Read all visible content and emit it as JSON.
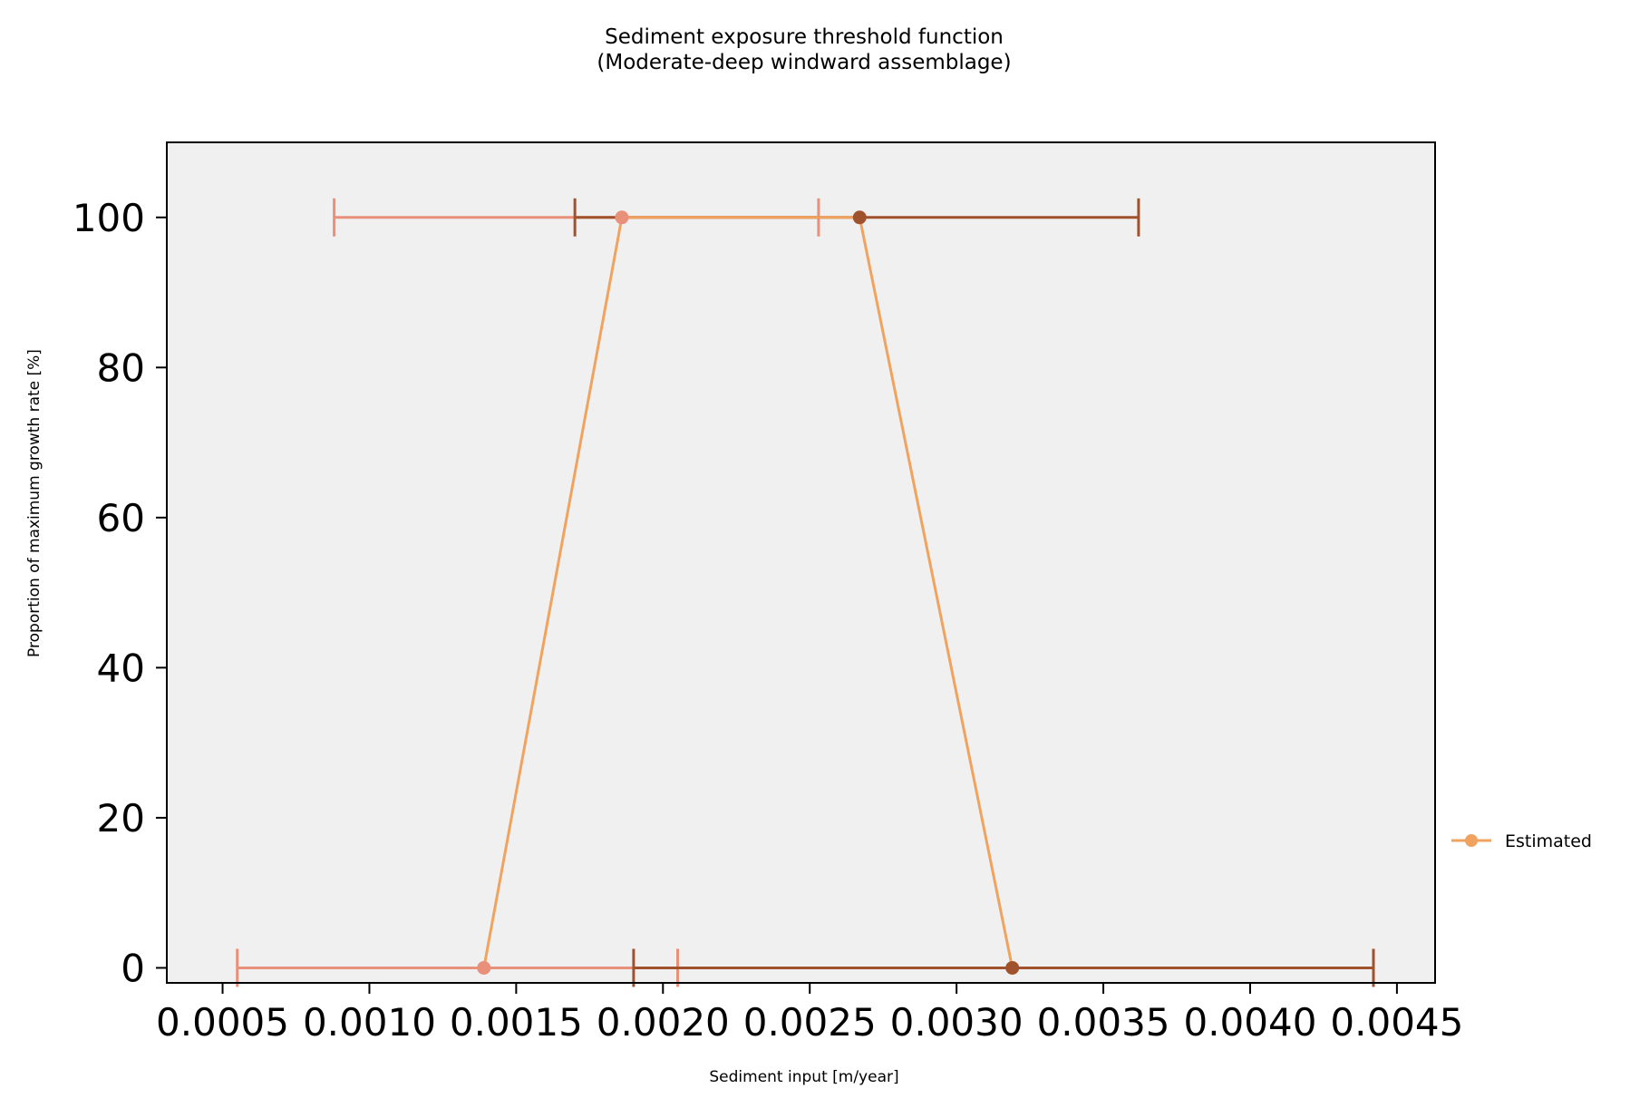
{
  "chart_data": {
    "type": "line",
    "title": "Sediment exposure threshold function",
    "subtitle": "(Moderate-deep windward assemblage)",
    "xlabel": "Sediment input [m/year]",
    "ylabel": "Proportion of maximum growth rate [%]",
    "xlim": [
      0.00031,
      0.00463
    ],
    "ylim": [
      -2,
      110
    ],
    "xticks": [
      0.0005,
      0.001,
      0.0015,
      0.002,
      0.0025,
      0.003,
      0.0035,
      0.004,
      0.0045
    ],
    "xtick_labels": [
      "0.0005",
      "0.0010",
      "0.0015",
      "0.0020",
      "0.0025",
      "0.0030",
      "0.0035",
      "0.0040",
      "0.0045"
    ],
    "yticks": [
      0,
      20,
      40,
      60,
      80,
      100
    ],
    "ytick_labels": [
      "0",
      "20",
      "40",
      "60",
      "80",
      "100"
    ],
    "grid": false,
    "legend": {
      "placement": "outside-right-bottom"
    },
    "colors": {
      "plot_background": "#f1f0f0",
      "line": "#f0a35e",
      "point_low": "#e8907a",
      "point_high": "#a0522d"
    },
    "series": [
      {
        "name": "Estimated",
        "color": "#f0a35e",
        "x": [
          0.00139,
          0.00186,
          0.00267,
          0.00319
        ],
        "y": [
          0,
          100,
          100,
          0
        ]
      }
    ],
    "errorbars": [
      {
        "x": 0.00139,
        "y": 0,
        "xmin": 0.00055,
        "xmax": 0.00205,
        "color": "#e8907a"
      },
      {
        "x": 0.00186,
        "y": 100,
        "xmin": 0.00088,
        "xmax": 0.00253,
        "color": "#e8907a"
      },
      {
        "x": 0.00267,
        "y": 100,
        "xmin": 0.0017,
        "xmax": 0.00362,
        "color": "#a0522d"
      },
      {
        "x": 0.00319,
        "y": 0,
        "xmin": 0.0019,
        "xmax": 0.00442,
        "color": "#a0522d"
      }
    ]
  }
}
